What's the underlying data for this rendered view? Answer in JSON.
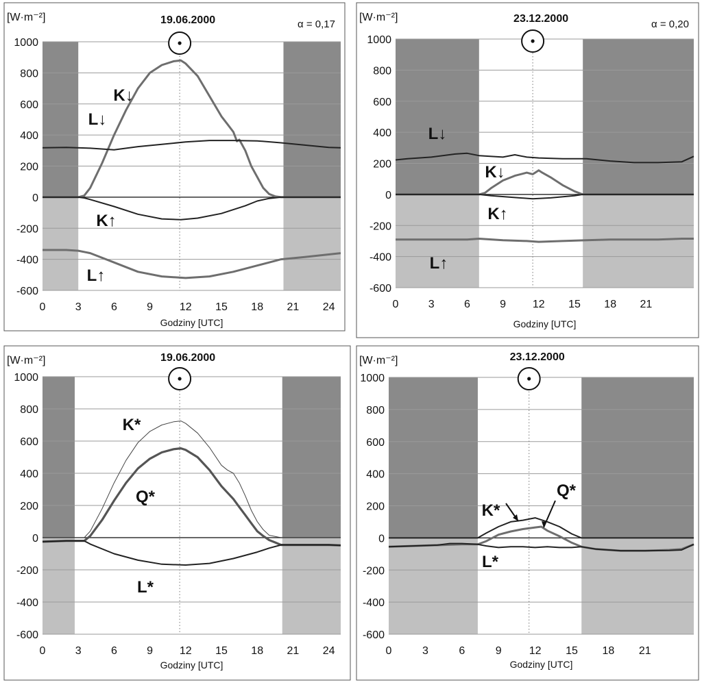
{
  "colors": {
    "night_dark": "#8a8a8a",
    "night_light": "#c0c0c0",
    "grid": "#9a9a9a",
    "curve_dark": "#222222",
    "curve_gray": "#6e6e6e",
    "frame": "#555555"
  },
  "chart_data": [
    {
      "type": "line",
      "panel": "top-left",
      "title": "19.06.2000",
      "ylabel": "[W·m⁻²]",
      "xlabel": "Godziny [UTC]",
      "albedo": "α = 0,17",
      "sun_symbol": "sun-at-solar-noon",
      "solar_noon_hour": 11.5,
      "night_before_hour": 3,
      "night_after_hour": 20.2,
      "xlim": [
        0,
        25
      ],
      "ylim": [
        -600,
        1000
      ],
      "xticks": [
        "0",
        "3",
        "6",
        "9",
        "12",
        "15",
        "18",
        "21",
        "24"
      ],
      "yticks": [
        "1000",
        "800",
        "600",
        "400",
        "200",
        "0",
        "-200",
        "-400",
        "-600"
      ],
      "series": [
        {
          "name": "K↓",
          "style": "gray",
          "x": [
            0,
            3,
            3.5,
            4,
            5,
            6,
            7,
            8,
            9,
            10,
            11,
            11.6,
            12,
            13,
            14,
            15,
            15.5,
            16,
            16.3,
            16.5,
            17,
            17.5,
            18,
            18.5,
            19,
            19.5,
            20,
            20.2,
            25
          ],
          "values": [
            0,
            0,
            10,
            60,
            220,
            400,
            560,
            700,
            800,
            850,
            875,
            880,
            860,
            780,
            650,
            520,
            470,
            420,
            360,
            370,
            300,
            200,
            130,
            60,
            20,
            5,
            0,
            0,
            0
          ]
        },
        {
          "name": "L↓",
          "style": "dark",
          "x": [
            0,
            2,
            4,
            6,
            8,
            10,
            12,
            14,
            16,
            18,
            20,
            22,
            24,
            25
          ],
          "values": [
            318,
            320,
            315,
            305,
            325,
            340,
            355,
            365,
            365,
            362,
            350,
            335,
            320,
            318
          ]
        },
        {
          "name": "K↑",
          "style": "dark",
          "x": [
            0,
            3,
            3.5,
            4,
            6,
            8,
            10,
            11.6,
            13,
            15,
            17,
            18,
            19,
            20,
            25
          ],
          "values": [
            0,
            0,
            -5,
            -15,
            -60,
            -110,
            -140,
            -145,
            -135,
            -105,
            -55,
            -25,
            -8,
            0,
            0
          ]
        },
        {
          "name": "L↑",
          "style": "gray",
          "x": [
            0,
            2,
            3,
            4,
            6,
            8,
            10,
            12,
            14,
            16,
            18,
            19,
            20,
            22,
            25
          ],
          "values": [
            -340,
            -340,
            -345,
            -360,
            -420,
            -480,
            -510,
            -520,
            -510,
            -480,
            -440,
            -420,
            -400,
            -385,
            -360
          ]
        }
      ],
      "annotations": [
        "K↓",
        "L↓",
        "K↑",
        "L↑"
      ]
    },
    {
      "type": "line",
      "panel": "top-right",
      "title": "23.12.2000",
      "ylabel": "[W·m⁻²]",
      "xlabel": "Godziny [UTC]",
      "albedo": "α = 0,20",
      "sun_symbol": "sun-at-solar-noon",
      "solar_noon_hour": 11.5,
      "night_before_hour": 7,
      "night_after_hour": 15.7,
      "xlim": [
        0,
        25
      ],
      "ylim": [
        -600,
        1000
      ],
      "xticks": [
        "0",
        "3",
        "6",
        "9",
        "12",
        "15",
        "18",
        "21"
      ],
      "yticks": [
        "1000",
        "800",
        "600",
        "400",
        "200",
        "0",
        "-200",
        "-400",
        "-600"
      ],
      "series": [
        {
          "name": "L↓",
          "style": "dark",
          "x": [
            0,
            1,
            3,
            5,
            6,
            7,
            9,
            10,
            11,
            12,
            14,
            16,
            18,
            19,
            20,
            22,
            24,
            25
          ],
          "values": [
            222,
            230,
            240,
            260,
            265,
            250,
            240,
            255,
            240,
            235,
            230,
            230,
            215,
            210,
            205,
            205,
            210,
            245
          ]
        },
        {
          "name": "K↓",
          "style": "gray",
          "x": [
            0,
            7,
            7.5,
            8,
            9,
            10,
            11,
            11.5,
            12,
            12.3,
            13,
            14,
            15,
            15.7,
            25
          ],
          "values": [
            0,
            0,
            10,
            40,
            90,
            120,
            140,
            130,
            155,
            140,
            110,
            60,
            20,
            0,
            0
          ]
        },
        {
          "name": "K↑",
          "style": "dark",
          "x": [
            0,
            7,
            8,
            10,
            11.5,
            13,
            15,
            15.7,
            25
          ],
          "values": [
            0,
            0,
            -8,
            -20,
            -28,
            -22,
            -8,
            0,
            0
          ]
        },
        {
          "name": "L↑",
          "style": "gray",
          "x": [
            0,
            2,
            4,
            6,
            7,
            9,
            11,
            12,
            14,
            16,
            18,
            20,
            22,
            24,
            25
          ],
          "values": [
            -290,
            -290,
            -290,
            -290,
            -285,
            -295,
            -300,
            -305,
            -300,
            -295,
            -290,
            -290,
            -290,
            -285,
            -285
          ]
        }
      ],
      "annotations": [
        "L↓",
        "K↓",
        "K↑",
        "L↑"
      ]
    },
    {
      "type": "line",
      "panel": "bottom-left",
      "title": "19.06.2000",
      "ylabel": "[W·m⁻²]",
      "xlabel": "Godziny [UTC]",
      "sun_symbol": "sun-at-solar-noon",
      "solar_noon_hour": 11.5,
      "night_before_hour": 2.7,
      "night_after_hour": 20.1,
      "xlim": [
        0,
        25
      ],
      "ylim": [
        -600,
        1000
      ],
      "xticks": [
        "0",
        "3",
        "6",
        "9",
        "12",
        "15",
        "18",
        "21",
        "24"
      ],
      "yticks": [
        "1000",
        "800",
        "600",
        "400",
        "200",
        "0",
        "-200",
        "-400",
        "-600"
      ],
      "series": [
        {
          "name": "K*",
          "style": "thin",
          "x": [
            0,
            3.5,
            4,
            5,
            6,
            7,
            8,
            9,
            10,
            11,
            11.6,
            12,
            13,
            14,
            15,
            15.5,
            16,
            16.5,
            17,
            17.5,
            18,
            18.5,
            19,
            20,
            25
          ],
          "values": [
            0,
            0,
            40,
            180,
            340,
            480,
            590,
            660,
            700,
            720,
            725,
            710,
            650,
            560,
            450,
            420,
            400,
            340,
            260,
            170,
            100,
            50,
            15,
            0,
            0
          ]
        },
        {
          "name": "Q*",
          "style": "thick",
          "x": [
            0,
            2,
            3.5,
            4,
            5,
            6,
            7,
            8,
            9,
            10,
            11,
            11.6,
            12,
            13,
            14,
            15,
            15.5,
            16,
            16.5,
            17,
            17.5,
            18,
            18.5,
            19,
            19.5,
            20,
            22,
            24,
            25
          ],
          "values": [
            -25,
            -20,
            -20,
            10,
            110,
            230,
            340,
            430,
            490,
            530,
            550,
            555,
            545,
            500,
            420,
            320,
            280,
            240,
            190,
            140,
            90,
            40,
            10,
            -15,
            -30,
            -45,
            -45,
            -45,
            -48
          ]
        },
        {
          "name": "L*",
          "style": "dark",
          "x": [
            0,
            2,
            3.5,
            4,
            6,
            8,
            10,
            12,
            14,
            16,
            18,
            19,
            20,
            22,
            24,
            25
          ],
          "values": [
            -25,
            -20,
            -20,
            -40,
            -100,
            -140,
            -165,
            -170,
            -160,
            -130,
            -90,
            -65,
            -45,
            -45,
            -45,
            -48
          ]
        }
      ],
      "annotations": [
        "K*",
        "Q*",
        "L*"
      ]
    },
    {
      "type": "line",
      "panel": "bottom-right",
      "title": "23.12.2000",
      "ylabel": "[W·m⁻²]",
      "xlabel": "Godziny [UTC]",
      "sun_symbol": "sun-at-solar-noon",
      "solar_noon_hour": 11.5,
      "night_before_hour": 7.3,
      "night_after_hour": 15.8,
      "xlim": [
        0,
        25
      ],
      "ylim": [
        -600,
        1000
      ],
      "xticks": [
        "0",
        "3",
        "6",
        "9",
        "12",
        "15",
        "18",
        "21"
      ],
      "yticks": [
        "1000",
        "800",
        "600",
        "400",
        "200",
        "0",
        "-200",
        "-400",
        "-600"
      ],
      "series": [
        {
          "name": "K*",
          "style": "dark",
          "x": [
            0,
            7.3,
            8,
            9,
            10,
            11,
            12,
            13,
            14,
            15,
            15.8,
            25
          ],
          "values": [
            0,
            0,
            30,
            70,
            100,
            110,
            125,
            100,
            70,
            25,
            0,
            0
          ]
        },
        {
          "name": "Q*",
          "style": "gray",
          "x": [
            0,
            6,
            7.3,
            8,
            9,
            10,
            11,
            12,
            12.5,
            13,
            14,
            15,
            15.8,
            17,
            19,
            21,
            23,
            24,
            25
          ],
          "values": [
            -55,
            -40,
            -40,
            -20,
            20,
            40,
            55,
            65,
            70,
            45,
            10,
            -30,
            -55,
            -70,
            -80,
            -80,
            -75,
            -70,
            -40
          ]
        },
        {
          "name": "L*",
          "style": "dark",
          "x": [
            0,
            2,
            4,
            5,
            6,
            7.3,
            8,
            9,
            10,
            11,
            12,
            13,
            14,
            15,
            15.8,
            17,
            19,
            21,
            23,
            24,
            25
          ],
          "values": [
            -55,
            -50,
            -45,
            -35,
            -35,
            -40,
            -50,
            -60,
            -55,
            -55,
            -60,
            -55,
            -60,
            -60,
            -55,
            -70,
            -80,
            -80,
            -78,
            -75,
            -40
          ]
        }
      ],
      "annotations": [
        "K*",
        "Q*",
        "L*"
      ]
    }
  ]
}
